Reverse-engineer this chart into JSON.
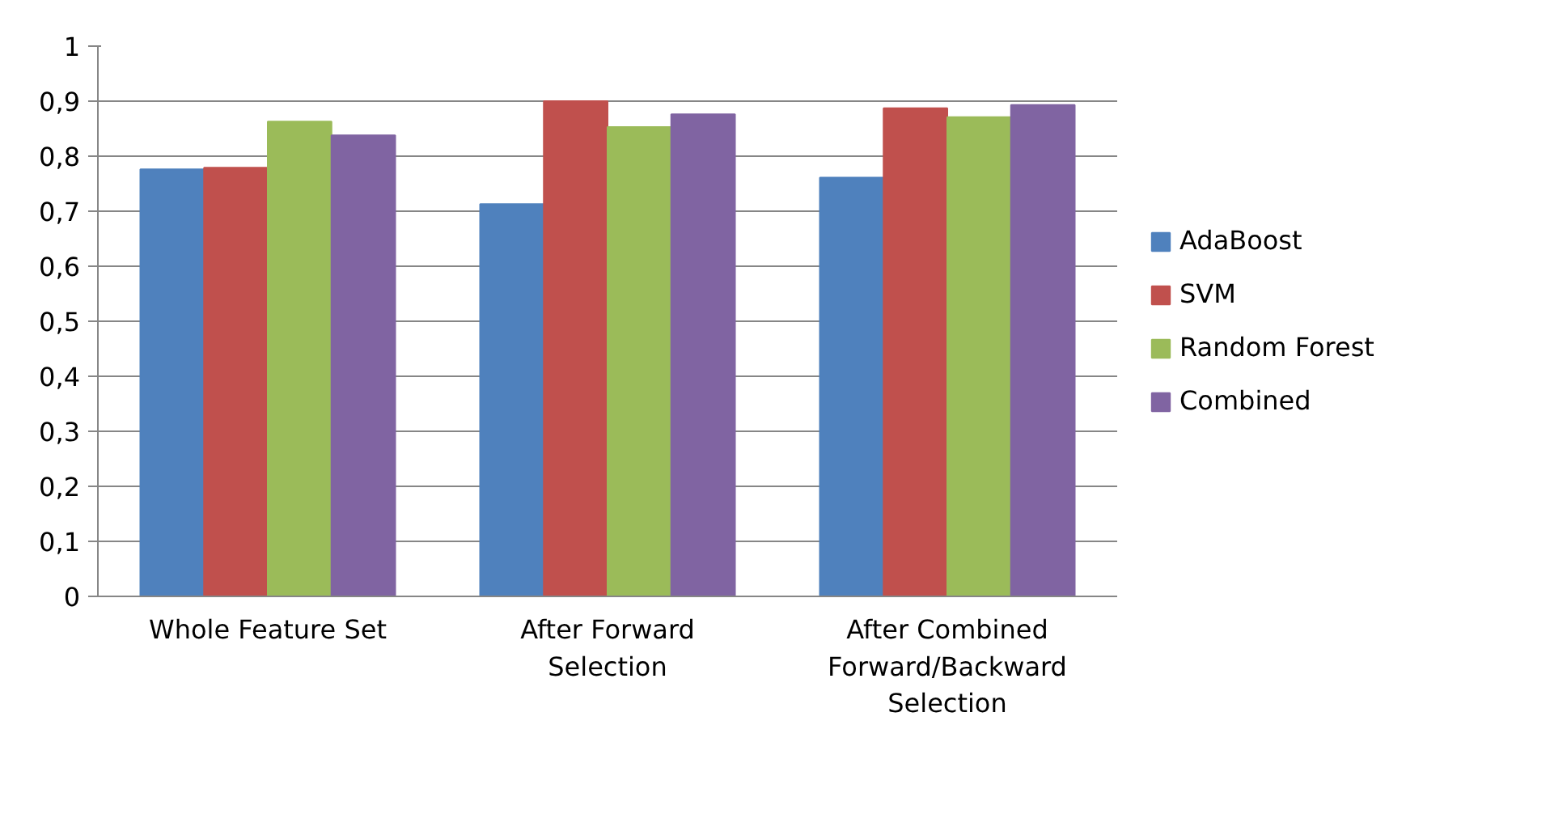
{
  "chart_data": {
    "type": "bar",
    "categories": [
      "Whole Feature Set",
      "After Forward Selection",
      "After Combined Forward/Backward Selection"
    ],
    "series": [
      {
        "name": "AdaBoost",
        "color": "#4f81bd",
        "values": [
          0.776,
          0.713,
          0.761
        ]
      },
      {
        "name": "SVM",
        "color": "#c0504d",
        "values": [
          0.779,
          0.9,
          0.887
        ]
      },
      {
        "name": "Random Forest",
        "color": "#9bbb59",
        "values": [
          0.863,
          0.853,
          0.871
        ]
      },
      {
        "name": "Combined",
        "color": "#8064a2",
        "values": [
          0.838,
          0.876,
          0.893
        ]
      }
    ],
    "ylim": [
      0,
      1
    ],
    "yticks": [
      0,
      {
        "value": 0.1,
        "label": "0,1"
      },
      {
        "value": 0.2,
        "label": "0,2"
      },
      {
        "value": 0.3,
        "label": "0,3"
      },
      {
        "value": 0.4,
        "label": "0,4"
      },
      {
        "value": 0.5,
        "label": "0,5"
      },
      {
        "value": 0.6,
        "label": "0,6"
      },
      {
        "value": 0.7,
        "label": "0,7"
      },
      {
        "value": 0.8,
        "label": "0,8"
      },
      {
        "value": 0.9,
        "label": "0,9"
      },
      1
    ],
    "grid": "y",
    "legend": "right"
  }
}
